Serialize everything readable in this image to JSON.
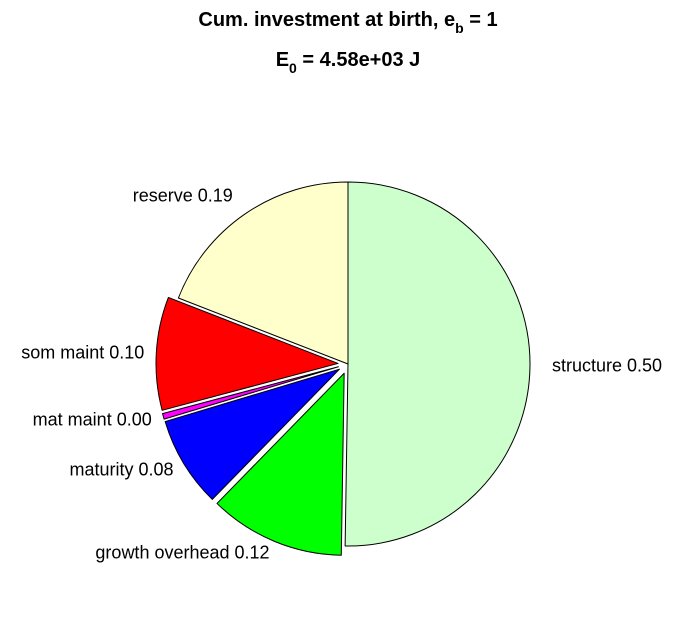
{
  "chart_data": {
    "type": "pie",
    "title_line1": {
      "prefix": "Cum. investment at birth, e",
      "subscript": "b",
      "suffix": " = 1"
    },
    "title_line2": {
      "prefix": "E",
      "subscript": "0",
      "suffix": " = 4.58e+03 J"
    },
    "slices": [
      {
        "name": "structure",
        "label": "structure 0.50",
        "value": 0.5,
        "color": "#CCFFCC",
        "exploded": false
      },
      {
        "name": "growth overhead",
        "label": "growth overhead 0.12",
        "value": 0.12,
        "color": "#00FF00",
        "exploded": true
      },
      {
        "name": "maturity",
        "label": "maturity 0.08",
        "value": 0.08,
        "color": "#0000FF",
        "exploded": true
      },
      {
        "name": "mat maint",
        "label": "mat maint 0.00",
        "value": 0.005,
        "color": "#FF00FF",
        "exploded": true
      },
      {
        "name": "som maint",
        "label": "som maint 0.10",
        "value": 0.1,
        "color": "#FF0000",
        "exploded": true
      },
      {
        "name": "reserve",
        "label": "reserve 0.19",
        "value": 0.19,
        "color": "#FFFFCC",
        "exploded": false
      }
    ]
  }
}
